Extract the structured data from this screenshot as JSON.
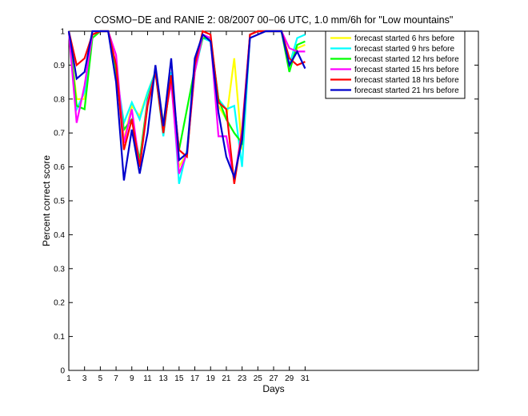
{
  "chart_data": {
    "type": "line",
    "title": "COSMO−DE and RANIE 2: 08/2007 00−06 UTC, 1.0 mm/6h for \"Low mountains\"",
    "xlabel": "Days",
    "ylabel": "Percent correct score",
    "xlim": [
      1,
      53
    ],
    "ylim": [
      0,
      1
    ],
    "x_ticks": [
      1,
      3,
      5,
      7,
      9,
      11,
      13,
      15,
      17,
      19,
      21,
      23,
      25,
      27,
      29,
      31
    ],
    "y_ticks": [
      0,
      0.1,
      0.2,
      0.3,
      0.4,
      0.5,
      0.6,
      0.7,
      0.8,
      0.9,
      1
    ],
    "y_tick_labels": [
      "0",
      "0.1",
      "0.2",
      "0.3",
      "0.4",
      "0.5",
      "0.6",
      "0.7",
      "0.8",
      "0.9",
      "1"
    ],
    "legend_position": "top-right",
    "x": [
      1,
      2,
      3,
      4,
      5,
      6,
      7,
      8,
      9,
      10,
      11,
      12,
      13,
      14,
      15,
      16,
      17,
      18,
      19,
      20,
      21,
      22,
      23,
      24,
      25,
      26,
      27,
      28,
      29,
      30,
      31
    ],
    "series": [
      {
        "name": "forecast started 6 hrs before",
        "color": "#ffff00",
        "values": [
          1,
          0.8,
          0.8,
          0.99,
          1,
          1,
          0.9,
          0.68,
          0.78,
          0.75,
          0.82,
          0.88,
          0.73,
          0.88,
          0.6,
          0.64,
          0.88,
          0.99,
          0.97,
          0.78,
          0.74,
          0.92,
          0.65,
          0.99,
          1,
          1,
          1,
          1,
          0.9,
          0.95,
          0.96
        ]
      },
      {
        "name": "forecast started 9 hrs before",
        "color": "#00ffff",
        "values": [
          1,
          0.77,
          0.82,
          0.99,
          1,
          1,
          0.88,
          0.73,
          0.79,
          0.74,
          0.82,
          0.88,
          0.69,
          0.88,
          0.55,
          0.65,
          0.88,
          0.98,
          0.97,
          0.8,
          0.77,
          0.78,
          0.6,
          0.99,
          1,
          1,
          1,
          1,
          0.9,
          0.98,
          0.99
        ]
      },
      {
        "name": "forecast started 12 hrs before",
        "color": "#00ff00",
        "values": [
          1,
          0.78,
          0.77,
          0.98,
          1,
          1,
          0.87,
          0.71,
          0.74,
          0.62,
          0.8,
          0.88,
          0.7,
          0.87,
          0.65,
          0.77,
          0.89,
          0.98,
          0.98,
          0.8,
          0.74,
          0.7,
          0.67,
          0.99,
          1,
          1,
          1,
          1,
          0.88,
          0.96,
          0.97
        ]
      },
      {
        "name": "forecast started 15 hrs before",
        "color": "#ff00ff",
        "values": [
          1,
          0.73,
          0.84,
          0.99,
          1,
          1,
          0.93,
          0.67,
          0.77,
          0.6,
          0.79,
          0.88,
          0.72,
          0.85,
          0.58,
          0.64,
          0.88,
          0.99,
          0.98,
          0.69,
          0.69,
          0.56,
          0.71,
          0.99,
          1,
          1,
          1,
          1,
          0.95,
          0.94,
          0.94
        ]
      },
      {
        "name": "forecast started 18 hrs before",
        "color": "#ff0000",
        "values": [
          1,
          0.9,
          0.92,
          0.99,
          1,
          1,
          0.9,
          0.65,
          0.74,
          0.6,
          0.78,
          0.88,
          0.7,
          0.87,
          0.65,
          0.63,
          0.9,
          1,
          0.99,
          0.79,
          0.77,
          0.55,
          0.7,
          0.99,
          1,
          1,
          1,
          1,
          0.92,
          0.9,
          0.91
        ]
      },
      {
        "name": "forecast started 21 hrs before",
        "color": "#0000cc",
        "values": [
          1,
          0.86,
          0.88,
          1,
          1,
          1,
          0.85,
          0.56,
          0.71,
          0.58,
          0.7,
          0.9,
          0.72,
          0.92,
          0.62,
          0.64,
          0.92,
          0.99,
          0.97,
          0.76,
          0.63,
          0.57,
          0.68,
          0.98,
          0.99,
          1,
          1,
          1,
          0.9,
          0.94,
          0.89
        ]
      }
    ]
  }
}
